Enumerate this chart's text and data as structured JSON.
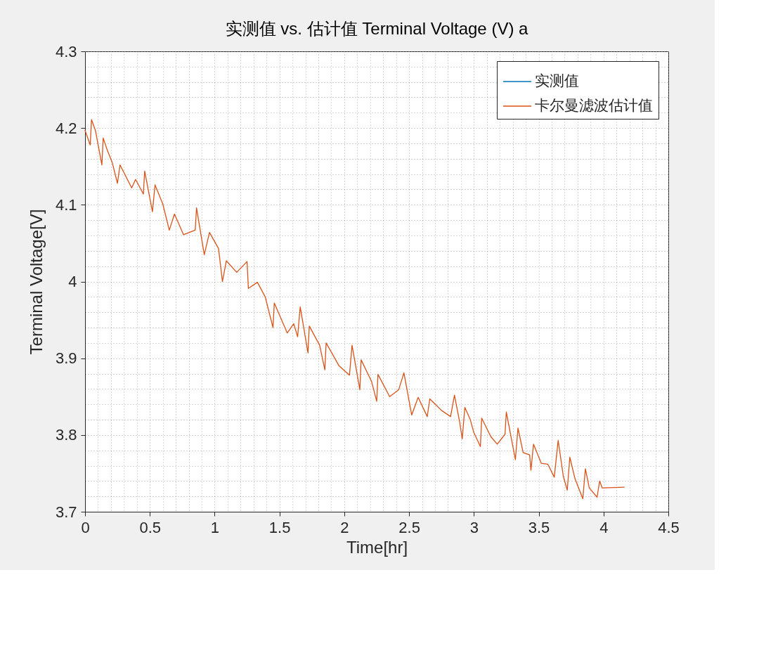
{
  "chart_data": {
    "type": "line",
    "title": "实测值 vs. 估计值 Terminal Voltage (V) a",
    "xlabel": "Time[hr]",
    "ylabel": "Terminal Voltage[V]",
    "x": [
      0,
      0.04,
      0.05,
      0.08,
      0.13,
      0.14,
      0.17,
      0.21,
      0.25,
      0.27,
      0.36,
      0.39,
      0.45,
      0.46,
      0.52,
      0.54,
      0.6,
      0.65,
      0.69,
      0.76,
      0.85,
      0.86,
      0.92,
      0.96,
      1.03,
      1.06,
      1.09,
      1.17,
      1.25,
      1.26,
      1.33,
      1.39,
      1.45,
      1.46,
      1.56,
      1.61,
      1.64,
      1.66,
      1.72,
      1.73,
      1.81,
      1.85,
      1.86,
      1.96,
      2.04,
      2.06,
      2.12,
      2.13,
      2.21,
      2.25,
      2.26,
      2.35,
      2.42,
      2.46,
      2.52,
      2.57,
      2.64,
      2.66,
      2.75,
      2.82,
      2.85,
      2.89,
      2.91,
      2.93,
      2.97,
      3.0,
      3.05,
      3.06,
      3.13,
      3.18,
      3.24,
      3.25,
      3.32,
      3.34,
      3.38,
      3.43,
      3.44,
      3.46,
      3.52,
      3.57,
      3.62,
      3.65,
      3.69,
      3.72,
      3.74,
      3.78,
      3.84,
      3.86,
      3.89,
      3.95,
      3.97,
      3.99,
      4.16
    ],
    "series": [
      {
        "name": "实测值",
        "color": "#0072bd",
        "values": [
          null,
          null,
          null,
          null,
          null,
          null,
          null,
          null,
          null,
          null,
          null,
          null,
          null,
          null,
          null,
          null,
          null,
          null,
          null,
          null,
          null,
          null,
          null,
          null,
          null,
          null,
          null,
          null,
          null,
          null,
          null,
          null,
          null,
          null,
          null,
          null,
          null,
          null,
          null,
          null,
          null,
          null,
          null,
          null,
          null,
          null,
          null,
          null,
          null,
          null,
          null,
          null,
          null,
          null,
          null,
          null,
          null,
          null,
          null,
          null,
          null,
          null,
          null,
          null,
          null,
          null,
          null,
          null,
          null,
          null,
          null,
          null,
          null,
          null,
          null,
          null,
          null,
          null,
          null,
          null,
          null,
          null,
          null,
          null,
          null,
          null,
          null,
          null,
          null,
          null,
          null,
          null,
          null
        ]
      },
      {
        "name": "卡尔曼滤波估计值",
        "color": "#d95319",
        "values": [
          4.197,
          4.178,
          4.211,
          4.197,
          4.152,
          4.187,
          4.172,
          4.155,
          4.128,
          4.152,
          4.122,
          4.133,
          4.114,
          4.144,
          4.091,
          4.126,
          4.101,
          4.067,
          4.088,
          4.061,
          4.067,
          4.096,
          4.035,
          4.064,
          4.043,
          4.0,
          4.027,
          4.012,
          4.026,
          3.991,
          3.999,
          3.98,
          3.94,
          3.972,
          3.933,
          3.945,
          3.928,
          3.967,
          3.907,
          3.942,
          3.917,
          3.885,
          3.92,
          3.89,
          3.878,
          3.917,
          3.859,
          3.898,
          3.87,
          3.844,
          3.879,
          3.85,
          3.859,
          3.881,
          3.826,
          3.849,
          3.824,
          3.847,
          3.832,
          3.824,
          3.852,
          3.817,
          3.795,
          3.836,
          3.821,
          3.803,
          3.785,
          3.822,
          3.798,
          3.788,
          3.801,
          3.83,
          3.768,
          3.809,
          3.777,
          3.774,
          3.754,
          3.788,
          3.763,
          3.762,
          3.745,
          3.793,
          3.746,
          3.728,
          3.771,
          3.743,
          3.717,
          3.756,
          3.731,
          3.719,
          3.74,
          3.731,
          3.732
        ]
      }
    ],
    "xlim": [
      0,
      4.5
    ],
    "xticks": [
      0,
      {
        "value": 0.1,
        "label": null
      },
      {
        "value": 0.2,
        "label": null
      },
      {
        "value": 0.3,
        "label": null
      },
      {
        "value": 0.4,
        "label": null
      },
      0.5,
      {
        "value": 0.6,
        "label": null
      },
      {
        "value": 0.7,
        "label": null
      },
      {
        "value": 0.8,
        "label": null
      },
      {
        "value": 0.9,
        "label": null
      },
      1,
      {
        "value": 1.1,
        "label": null
      },
      {
        "value": 1.2,
        "label": null
      },
      {
        "value": 1.3,
        "label": null
      },
      {
        "value": 1.4,
        "label": null
      },
      1.5,
      {
        "value": 1.6,
        "label": null
      },
      {
        "value": 1.7,
        "label": null
      },
      {
        "value": 1.8,
        "label": null
      },
      {
        "value": 1.9,
        "label": null
      },
      2,
      {
        "value": 2.1,
        "label": null
      },
      {
        "value": 2.2,
        "label": null
      },
      {
        "value": 2.3,
        "label": null
      },
      {
        "value": 2.4,
        "label": null
      },
      2.5,
      {
        "value": 2.6,
        "label": null
      },
      {
        "value": 2.7,
        "label": null
      },
      {
        "value": 2.8,
        "label": null
      },
      {
        "value": 2.9,
        "label": null
      },
      3,
      {
        "value": 3.1,
        "label": null
      },
      {
        "value": 3.2,
        "label": null
      },
      {
        "value": 3.3,
        "label": null
      },
      {
        "value": 3.4,
        "label": null
      },
      3.5,
      {
        "value": 3.6,
        "label": null
      },
      {
        "value": 3.7,
        "label": null
      },
      {
        "value": 3.8,
        "label": null
      },
      {
        "value": 3.9,
        "label": null
      },
      4,
      {
        "value": 4.1,
        "label": null
      },
      {
        "value": 4.2,
        "label": null
      },
      {
        "value": 4.3,
        "label": null
      },
      {
        "value": 4.4,
        "label": null
      },
      4.5
    ],
    "ylim": [
      3.7,
      4.3
    ],
    "yticks": [
      3.7,
      {
        "value": 3.72,
        "label": null
      },
      {
        "value": 3.74,
        "label": null
      },
      {
        "value": 3.76,
        "label": null
      },
      {
        "value": 3.78,
        "label": null
      },
      3.8,
      {
        "value": 3.82,
        "label": null
      },
      {
        "value": 3.84,
        "label": null
      },
      {
        "value": 3.86,
        "label": null
      },
      {
        "value": 3.88,
        "label": null
      },
      3.9,
      {
        "value": 3.92,
        "label": null
      },
      {
        "value": 3.94,
        "label": null
      },
      {
        "value": 3.96,
        "label": null
      },
      {
        "value": 3.98,
        "label": null
      },
      4,
      {
        "value": 4.02,
        "label": null
      },
      {
        "value": 4.04,
        "label": null
      },
      {
        "value": 4.06,
        "label": null
      },
      {
        "value": 4.08,
        "label": null
      },
      4.1,
      {
        "value": 4.12,
        "label": null
      },
      {
        "value": 4.14,
        "label": null
      },
      {
        "value": 4.16,
        "label": null
      },
      {
        "value": 4.18,
        "label": null
      },
      4.2,
      {
        "value": 4.22,
        "label": null
      },
      {
        "value": 4.24,
        "label": null
      },
      {
        "value": 4.26,
        "label": null
      },
      {
        "value": 4.28,
        "label": null
      },
      4.3
    ],
    "grid": true,
    "legend": "top right"
  }
}
